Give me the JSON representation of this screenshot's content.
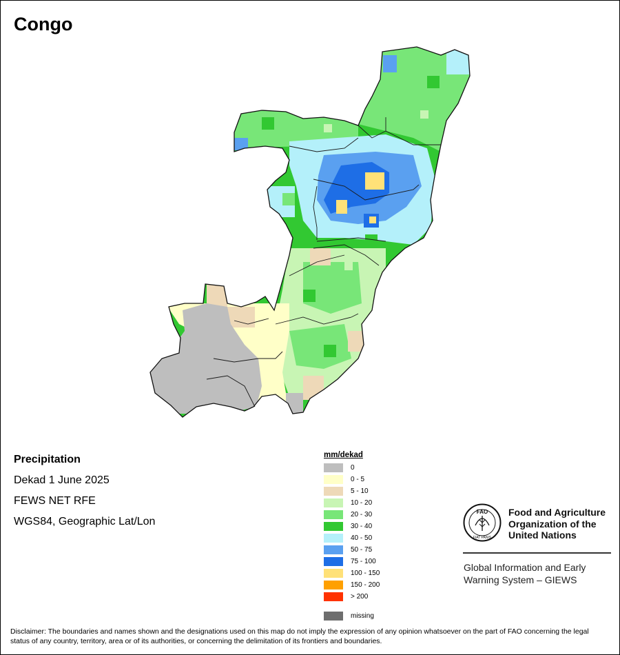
{
  "map_title": "Congo",
  "info": {
    "variable": "Precipitation",
    "period": "Dekad 1 June 2025",
    "source": "FEWS NET RFE",
    "projection": "WGS84, Geographic Lat/Lon"
  },
  "legend": {
    "title": "mm/dekad",
    "classes": [
      {
        "label": "0",
        "color": "#bebebe"
      },
      {
        "label": "0 - 5",
        "color": "#ffffc8"
      },
      {
        "label": "5 - 10",
        "color": "#eed9b8"
      },
      {
        "label": "10 - 20",
        "color": "#c8f5b4"
      },
      {
        "label": "20 - 30",
        "color": "#78e678"
      },
      {
        "label": "30 - 40",
        "color": "#32c832"
      },
      {
        "label": "40 - 50",
        "color": "#b4f0fa"
      },
      {
        "label": "50 - 75",
        "color": "#5aa0f0"
      },
      {
        "label": "75 - 100",
        "color": "#1e6ee6"
      },
      {
        "label": "100 - 150",
        "color": "#ffe178"
      },
      {
        "label": "150 - 200",
        "color": "#ffa000"
      },
      {
        "label": "> 200",
        "color": "#ff3200"
      }
    ],
    "missing": {
      "label": "missing",
      "color": "#6e6e6e"
    }
  },
  "logo": {
    "emblem_text": "FAO",
    "motto_text": "FIAT PANIS",
    "org_line1": "Food and Agriculture",
    "org_line2": "Organization of the",
    "org_line3": "United Nations",
    "giews_line1": "Global Information and Early",
    "giews_line2": "Warning System – GIEWS"
  },
  "disclaimer": "Disclaimer: The boundaries and names shown and the designations used on this map do not imply the expression of any opinion whatsoever on the part of FAO concerning the legal status of any country, territory, area or of its authorities, or concerning the delimitation of its frontiers and boundaries."
}
